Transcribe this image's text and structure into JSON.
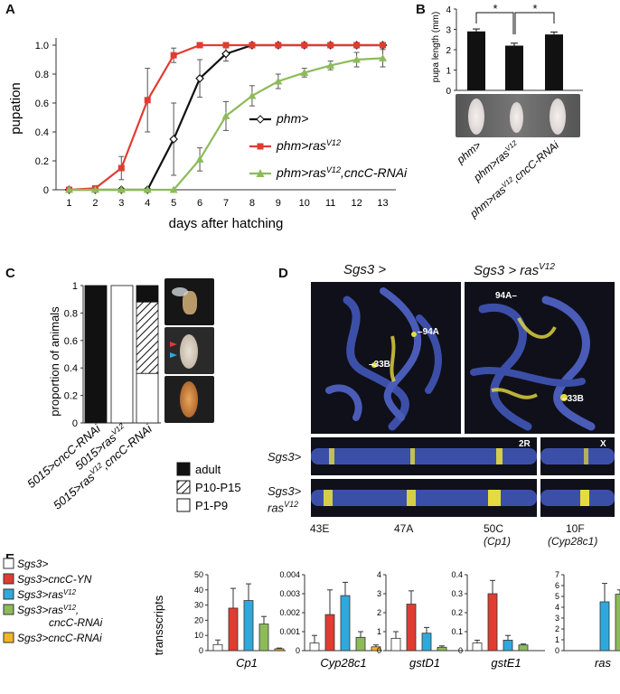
{
  "panels": {
    "A": "A",
    "B": "B",
    "C": "C",
    "D": "D",
    "E": "E"
  },
  "colors": {
    "black": "#111111",
    "red": "#e03c31",
    "green": "#8dbb5a",
    "blue": "#2fa9dd",
    "orange": "#f2b624",
    "white": "#ffffff",
    "dna_blue": "#3c4fa8",
    "signal_yellow": "#e6db3e"
  },
  "chart_data": [
    {
      "id": "A",
      "type": "line",
      "ylabel": "pupation",
      "xlabel": "days after hatching",
      "x": [
        1,
        2,
        3,
        4,
        5,
        6,
        7,
        8,
        9,
        10,
        11,
        12,
        13
      ],
      "ylim": [
        0,
        1.0
      ],
      "yticks": [
        "0",
        "0.2",
        "0.4",
        "0.6",
        "0.8",
        "1.0"
      ],
      "series": [
        {
          "name": "phm>",
          "color": "#111111",
          "marker": "diamond",
          "values": [
            0,
            0,
            0,
            0,
            0.35,
            0.77,
            0.94,
            1,
            1,
            1,
            1,
            1,
            1
          ],
          "err": [
            0,
            0,
            0,
            0,
            0.25,
            0.13,
            0.05,
            0,
            0,
            0,
            0,
            0,
            0
          ]
        },
        {
          "name": "phm>ras",
          "sup": "V12",
          "color": "#e03c31",
          "marker": "square",
          "values": [
            0,
            0.01,
            0.15,
            0.62,
            0.93,
            1,
            1,
            1,
            1,
            1,
            1,
            1,
            1
          ],
          "err": [
            0,
            0.01,
            0.08,
            0.22,
            0.05,
            0,
            0,
            0,
            0,
            0,
            0,
            0,
            0
          ]
        },
        {
          "name": "phm>ras",
          "sup": "V12",
          "suffix": ",cncC-RNAi",
          "color": "#8dbb5a",
          "marker": "triangle",
          "values": [
            0,
            0,
            0,
            0,
            0,
            0.21,
            0.51,
            0.65,
            0.75,
            0.81,
            0.86,
            0.9,
            0.91
          ],
          "err": [
            0,
            0,
            0,
            0,
            0,
            0.08,
            0.1,
            0.07,
            0.05,
            0.03,
            0.03,
            0.05,
            0.06
          ]
        }
      ]
    },
    {
      "id": "B",
      "type": "bar",
      "ylabel": "pupa length (mm)",
      "ylim": [
        0,
        4
      ],
      "yticks": [
        "0",
        "1",
        "2",
        "3",
        "4"
      ],
      "categories": [
        "phm>",
        "phm>rasV12",
        "phm>rasV12,cncC-RNAi"
      ],
      "values": [
        2.9,
        2.2,
        2.75
      ],
      "err": [
        0.12,
        0.12,
        0.12
      ],
      "significance": [
        "*",
        "*"
      ]
    },
    {
      "id": "C",
      "type": "bar",
      "ylabel": "proportion of animals",
      "ylim": [
        0,
        1
      ],
      "yticks": [
        "0",
        "0.2",
        "0.4",
        "0.6",
        "0.8",
        "1"
      ],
      "categories": [
        "5015>cncC-RNAi",
        "5015>rasV12",
        "5015>rasV12,cncC-RNAi"
      ],
      "series": [
        {
          "name": "adult",
          "values": [
            1,
            0,
            0.12
          ]
        },
        {
          "name": "P10-P15",
          "values": [
            0,
            0,
            0.52
          ]
        },
        {
          "name": "P1-P9",
          "values": [
            0,
            1,
            0.36
          ]
        }
      ]
    },
    {
      "id": "E",
      "type": "bar",
      "ylabel": "transscripts",
      "legend": [
        {
          "label": "Sgs3>"
        },
        {
          "label": "Sgs3>cncC-YN"
        },
        {
          "label": "Sgs3>rasV12"
        },
        {
          "label": "Sgs3>rasV12, cncC-RNAi"
        },
        {
          "label": "Sgs3>cncC-RNAi"
        }
      ],
      "subplots": [
        {
          "gene": "Cp1",
          "yticks": [
            "0",
            "10",
            "20",
            "30",
            "40",
            "50"
          ],
          "ymax": 50,
          "values": [
            4,
            28,
            33,
            17.5,
            1.2
          ],
          "err": [
            3,
            13,
            11,
            5,
            0.5
          ]
        },
        {
          "gene": "Cyp28c1",
          "yticks": [
            "0",
            "0.001",
            "0.002",
            "0.003",
            "0.004"
          ],
          "ymax": 0.004,
          "values": [
            0.0004,
            0.0019,
            0.0029,
            0.0007,
            0.0002
          ],
          "err": [
            0.0004,
            0.0013,
            0.0007,
            0.0003,
            0.0001
          ]
        },
        {
          "gene": "gstD1",
          "yticks": [
            "0",
            "1",
            "2",
            "3",
            "4"
          ],
          "ymax": 4,
          "values": [
            0.65,
            2.45,
            0.92,
            0.18,
            0
          ],
          "err": [
            0.35,
            0.7,
            0.3,
            0.07,
            0
          ]
        },
        {
          "gene": "gstE1",
          "yticks": [
            "0",
            "0.1",
            "0.2",
            "0.3",
            "0.4"
          ],
          "ymax": 0.4,
          "values": [
            0.04,
            0.3,
            0.055,
            0.03,
            0
          ],
          "err": [
            0.015,
            0.07,
            0.025,
            0.005,
            0
          ]
        },
        {
          "gene": "ras",
          "yticks": [
            "0",
            "1",
            "2",
            "3",
            "4",
            "5",
            "6",
            "7"
          ],
          "ymax": 7,
          "values": [
            0,
            0,
            4.5,
            5.2,
            0
          ],
          "err": [
            0,
            0,
            1.7,
            0.4,
            0
          ]
        }
      ]
    }
  ],
  "panelA_legend": [
    {
      "base": "phm>",
      "sup": "",
      "suffix": ""
    },
    {
      "base": "phm>ras",
      "sup": "V12",
      "suffix": ""
    },
    {
      "base": "phm>ras",
      "sup": "V12",
      "suffix": ",cncC-RNAi"
    }
  ],
  "panelB_xlabels": [
    {
      "base": "phm>",
      "sup": "",
      "suffix": ""
    },
    {
      "base": "phm>ras",
      "sup": "V12",
      "suffix": ""
    },
    {
      "base": "phm>ras",
      "sup": "V12",
      "suffix": ",cncC-RNAi"
    }
  ],
  "panelC_xlabels": [
    {
      "base": "5015>cncC-RNAi",
      "sup": "",
      "suffix": ""
    },
    {
      "base": "5015>ras",
      "sup": "V12",
      "suffix": ""
    },
    {
      "base": "5015>ras",
      "sup": "V12",
      "suffix": ",cncC-RNAi"
    }
  ],
  "panelC_legend": [
    "adult",
    "P10-P15",
    "P1-P9"
  ],
  "panelD": {
    "title_left": "Sgs3 >",
    "title_right_base": "Sgs3 > ras",
    "title_right_sup": "V12",
    "band_94A": "94A",
    "band_33B": "33B",
    "arm_2R": "2R",
    "arm_X": "X",
    "row1": "Sgs3>",
    "row2_a": "Sgs3>",
    "row2_b_base": "ras",
    "row2_b_sup": "V12",
    "loci": [
      "43E",
      "47A",
      "50C",
      "10F"
    ],
    "loci_genes": [
      "(Cp1)",
      "(Cyp28c1)"
    ]
  },
  "panelE_legend": [
    {
      "base": "Sgs3>",
      "sup": "",
      "suffix": "",
      "line2": "",
      "color": "#ffffff"
    },
    {
      "base": "Sgs3>cncC-YN",
      "sup": "",
      "suffix": "",
      "line2": "",
      "color": "#e03c31"
    },
    {
      "base": "Sgs3>ras",
      "sup": "V12",
      "suffix": "",
      "line2": "",
      "color": "#2fa9dd"
    },
    {
      "base": "Sgs3>ras",
      "sup": "V12",
      "suffix": ",",
      "line2": "cncC-RNAi",
      "color": "#8dbb5a"
    },
    {
      "base": "Sgs3>cncC-RNAi",
      "sup": "",
      "suffix": "",
      "line2": "",
      "color": "#f2b624"
    }
  ]
}
